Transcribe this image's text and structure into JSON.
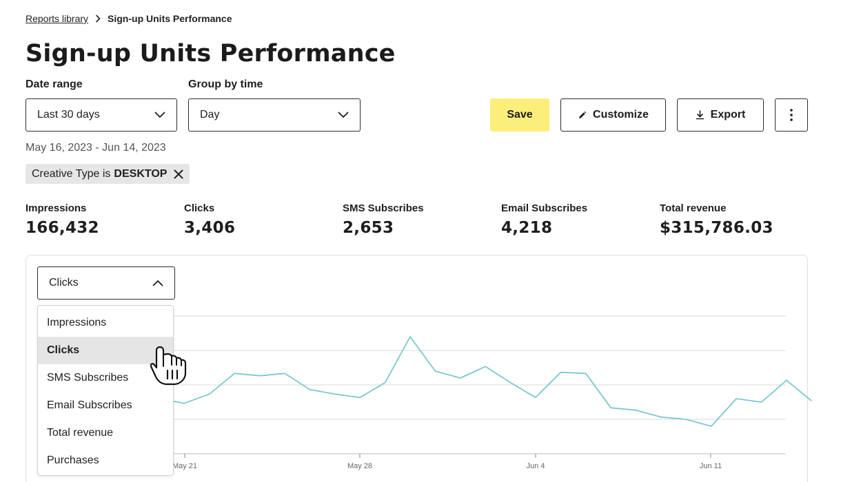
{
  "breadcrumb": {
    "parent": "Reports library",
    "current": "Sign-up Units Performance"
  },
  "page": {
    "title": "Sign-up Units Performance"
  },
  "filters": {
    "date_range_label": "Date range",
    "date_range_value": "Last 30 days",
    "group_by_label": "Group by time",
    "group_by_value": "Day",
    "date_range_text": "May 16, 2023 - Jun 14, 2023"
  },
  "toolbar": {
    "save": "Save",
    "customize": "Customize",
    "export": "Export"
  },
  "chip": {
    "prefix": "Creative Type is",
    "value": "DESKTOP"
  },
  "metrics": [
    {
      "label": "Impressions",
      "value": "166,432"
    },
    {
      "label": "Clicks",
      "value": "3,406"
    },
    {
      "label": "SMS Subscribes",
      "value": "2,653"
    },
    {
      "label": "Email Subscribes",
      "value": "4,218"
    },
    {
      "label": "Total revenue",
      "value": "$315,786.03"
    }
  ],
  "metric_select": {
    "value": "Clicks",
    "options": [
      "Impressions",
      "Clicks",
      "SMS Subscribes",
      "Email Subscribes",
      "Total revenue",
      "Purchases"
    ],
    "selected_index": 1
  },
  "chart_data": {
    "type": "line",
    "x_tick_labels": [
      "May 21",
      "May 28",
      "Jun 4",
      "Jun 11"
    ],
    "series": [
      {
        "color": "#7cc7d1",
        "values": [
          128,
          124,
          132,
          150,
          148,
          150,
          136,
          132,
          129,
          142,
          182,
          152,
          146,
          156,
          142,
          129,
          151,
          150,
          120,
          118,
          112,
          110,
          104,
          128,
          125,
          144,
          126
        ]
      }
    ],
    "grid": true,
    "gridline_color": "#d9d9d9"
  },
  "icons": {
    "breadcrumb_separator": "chevron-right-icon",
    "select_open": "chevron-up-icon",
    "select_closed": "chevron-down-icon",
    "customize": "pencil-icon",
    "export": "download-icon",
    "more": "vertical-ellipsis-icon",
    "chip_remove": "close-icon",
    "cursor": "pointer-hand-cursor"
  }
}
